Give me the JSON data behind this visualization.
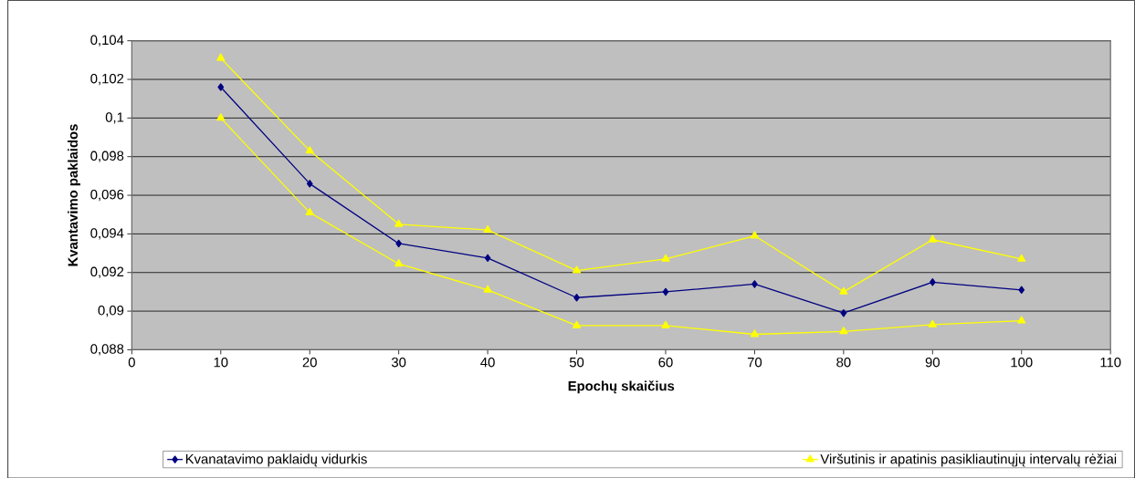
{
  "chart_data": {
    "type": "line",
    "xlabel": "Epochų skaičius",
    "ylabel": "Kvantavimo paklaidos",
    "x": [
      10,
      20,
      30,
      40,
      50,
      60,
      70,
      80,
      90,
      100
    ],
    "series": [
      {
        "name": "Kvanatavimo paklaidų vidurkis",
        "color": "#000080",
        "marker": "diamond",
        "values": [
          0.1016,
          0.0966,
          0.0935,
          0.09275,
          0.0907,
          0.091,
          0.0914,
          0.0899,
          0.0915,
          0.0911
        ]
      },
      {
        "name": "Viršutinis ir apatinis pasikliautinųjų intervalų rėžiai",
        "color": "#ffff00",
        "marker": "triangle",
        "values": [
          0.1031,
          0.0983,
          0.0945,
          0.0942,
          0.0921,
          0.0927,
          0.0939,
          0.091,
          0.0937,
          0.0927
        ]
      },
      {
        "color": "#ffff00",
        "marker": "triangle",
        "values": [
          0.1,
          0.0951,
          0.09245,
          0.0911,
          0.08925,
          0.08925,
          0.0888,
          0.08895,
          0.0893,
          0.0895
        ]
      }
    ],
    "xlim": [
      0,
      110
    ],
    "xticks": [
      0,
      10,
      20,
      30,
      40,
      50,
      60,
      70,
      80,
      90,
      100,
      110
    ],
    "ylim": [
      0.088,
      0.104
    ],
    "yticks": [
      {
        "value": 0.088,
        "label": "0,088"
      },
      {
        "value": 0.09,
        "label": "0,09"
      },
      {
        "value": 0.092,
        "label": "0,092"
      },
      {
        "value": 0.094,
        "label": "0,094"
      },
      {
        "value": 0.096,
        "label": "0,096"
      },
      {
        "value": 0.098,
        "label": "0,098"
      },
      {
        "value": 0.1,
        "label": "0,1"
      },
      {
        "value": 0.102,
        "label": "0,102"
      },
      {
        "value": 0.104,
        "label": "0,104"
      }
    ],
    "grid": "y",
    "legend": "bottom",
    "line_style": "solid"
  }
}
